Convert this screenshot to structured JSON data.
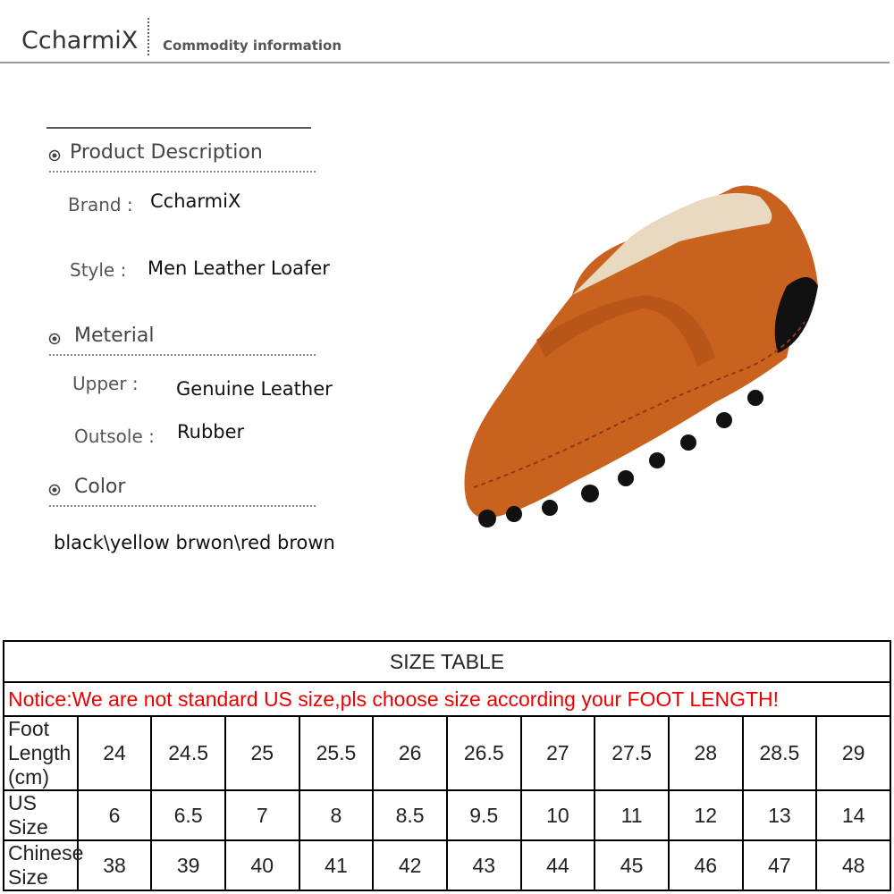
{
  "header": {
    "brand": "CcharmiX",
    "subtitle": "Commodity information"
  },
  "sections": [
    {
      "title": "Product Description",
      "fields": [
        {
          "label": "Brand :",
          "value": "CcharmiX"
        },
        {
          "label": "Style :",
          "value": "Men Leather Loafer"
        }
      ]
    },
    {
      "title": "Meterial",
      "fields": [
        {
          "label": "Upper :",
          "value": "Genuine Leather"
        },
        {
          "label": "Outsole :",
          "value": "Rubber"
        }
      ]
    },
    {
      "title": "Color",
      "text": "black\\yellow brwon\\red brown"
    }
  ],
  "table": {
    "title": "SIZE TABLE",
    "notice": "Notice:We are not standard US size,pls choose size according your FOOT LENGTH!",
    "rows": [
      [
        "Foot Length (cm)",
        "24",
        "24.5",
        "25",
        "25.5",
        "26",
        "26.5",
        "27",
        "27.5",
        "28",
        "28.5",
        "29"
      ],
      [
        "US Size",
        "6",
        "6.5",
        "7",
        "8",
        "8.5",
        "9.5",
        "10",
        "11",
        "12",
        "13",
        "14"
      ],
      [
        "Chinese Size",
        "38",
        "39",
        "40",
        "41",
        "42",
        "43",
        "44",
        "45",
        "46",
        "47",
        "48"
      ]
    ]
  }
}
